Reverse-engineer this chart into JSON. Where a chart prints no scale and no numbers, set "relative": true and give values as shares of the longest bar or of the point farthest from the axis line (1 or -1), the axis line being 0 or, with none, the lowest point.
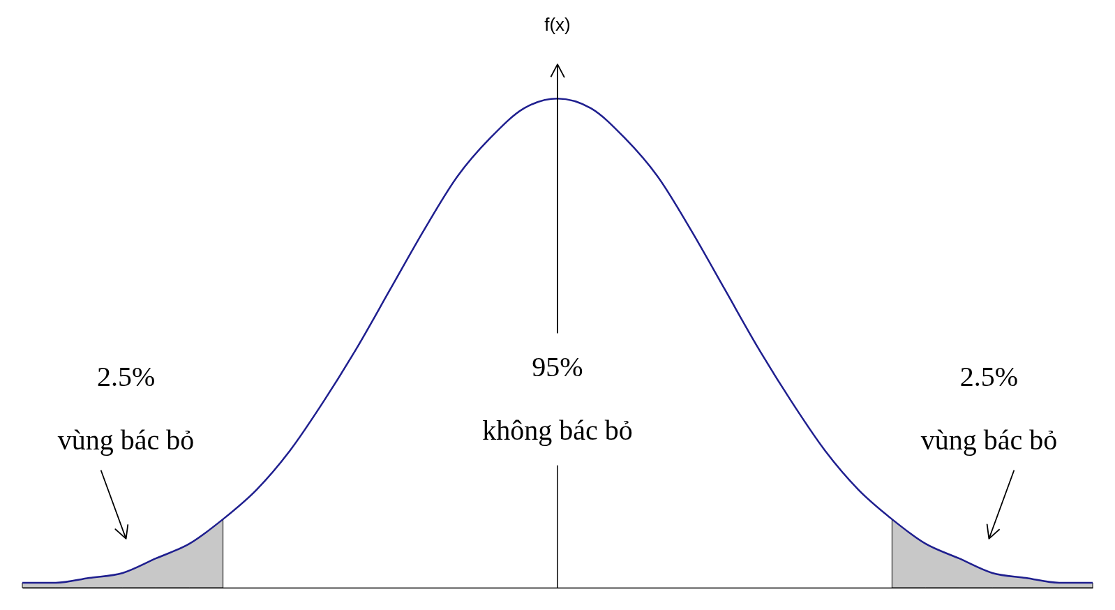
{
  "chart_data": {
    "type": "line",
    "relative": true,
    "ylabel": "f(x)",
    "tick_labels": false,
    "grid": false,
    "categories": [
      null,
      null,
      null,
      null,
      null,
      null,
      null,
      null,
      null,
      null,
      null,
      null,
      null,
      null,
      null,
      null,
      null,
      null,
      null,
      null,
      null,
      null,
      null,
      null,
      null,
      null,
      null,
      null,
      null,
      null,
      null,
      null,
      null
    ],
    "series": [
      {
        "type": "area",
        "color": "#c8c8c8",
        "values": [
          0.01,
          0.01,
          0.02,
          0.03,
          0.06,
          0.09,
          0.14,
          null,
          null,
          null,
          null,
          null,
          null,
          null,
          null,
          null,
          null,
          null,
          null,
          null,
          null,
          null,
          null,
          null,
          null,
          null,
          null,
          null,
          null,
          null,
          null,
          null,
          null
        ]
      },
      {
        "type": "area",
        "color": "#c8c8c8",
        "values": [
          null,
          null,
          null,
          null,
          null,
          null,
          null,
          null,
          null,
          null,
          null,
          null,
          null,
          null,
          null,
          null,
          null,
          null,
          null,
          null,
          null,
          null,
          null,
          null,
          null,
          null,
          0.14,
          0.09,
          0.06,
          0.03,
          0.02,
          0.01,
          0.01
        ]
      },
      {
        "color": "#1f1f8f",
        "values": [
          0.01,
          0.01,
          0.02,
          0.03,
          0.06,
          0.09,
          0.14,
          0.2,
          0.28,
          0.38,
          0.49,
          0.61,
          0.73,
          0.84,
          0.92,
          0.98,
          1,
          0.98,
          0.92,
          0.84,
          0.73,
          0.61,
          0.49,
          0.38,
          0.28,
          0.2,
          0.14,
          0.09,
          0.06,
          0.03,
          0.02,
          0.01,
          0.01
        ]
      }
    ],
    "annotations": [
      "2.5%",
      "vùng bác bỏ",
      "95%",
      "không bác bỏ",
      "2.5%",
      "vùng bác bỏ"
    ]
  }
}
